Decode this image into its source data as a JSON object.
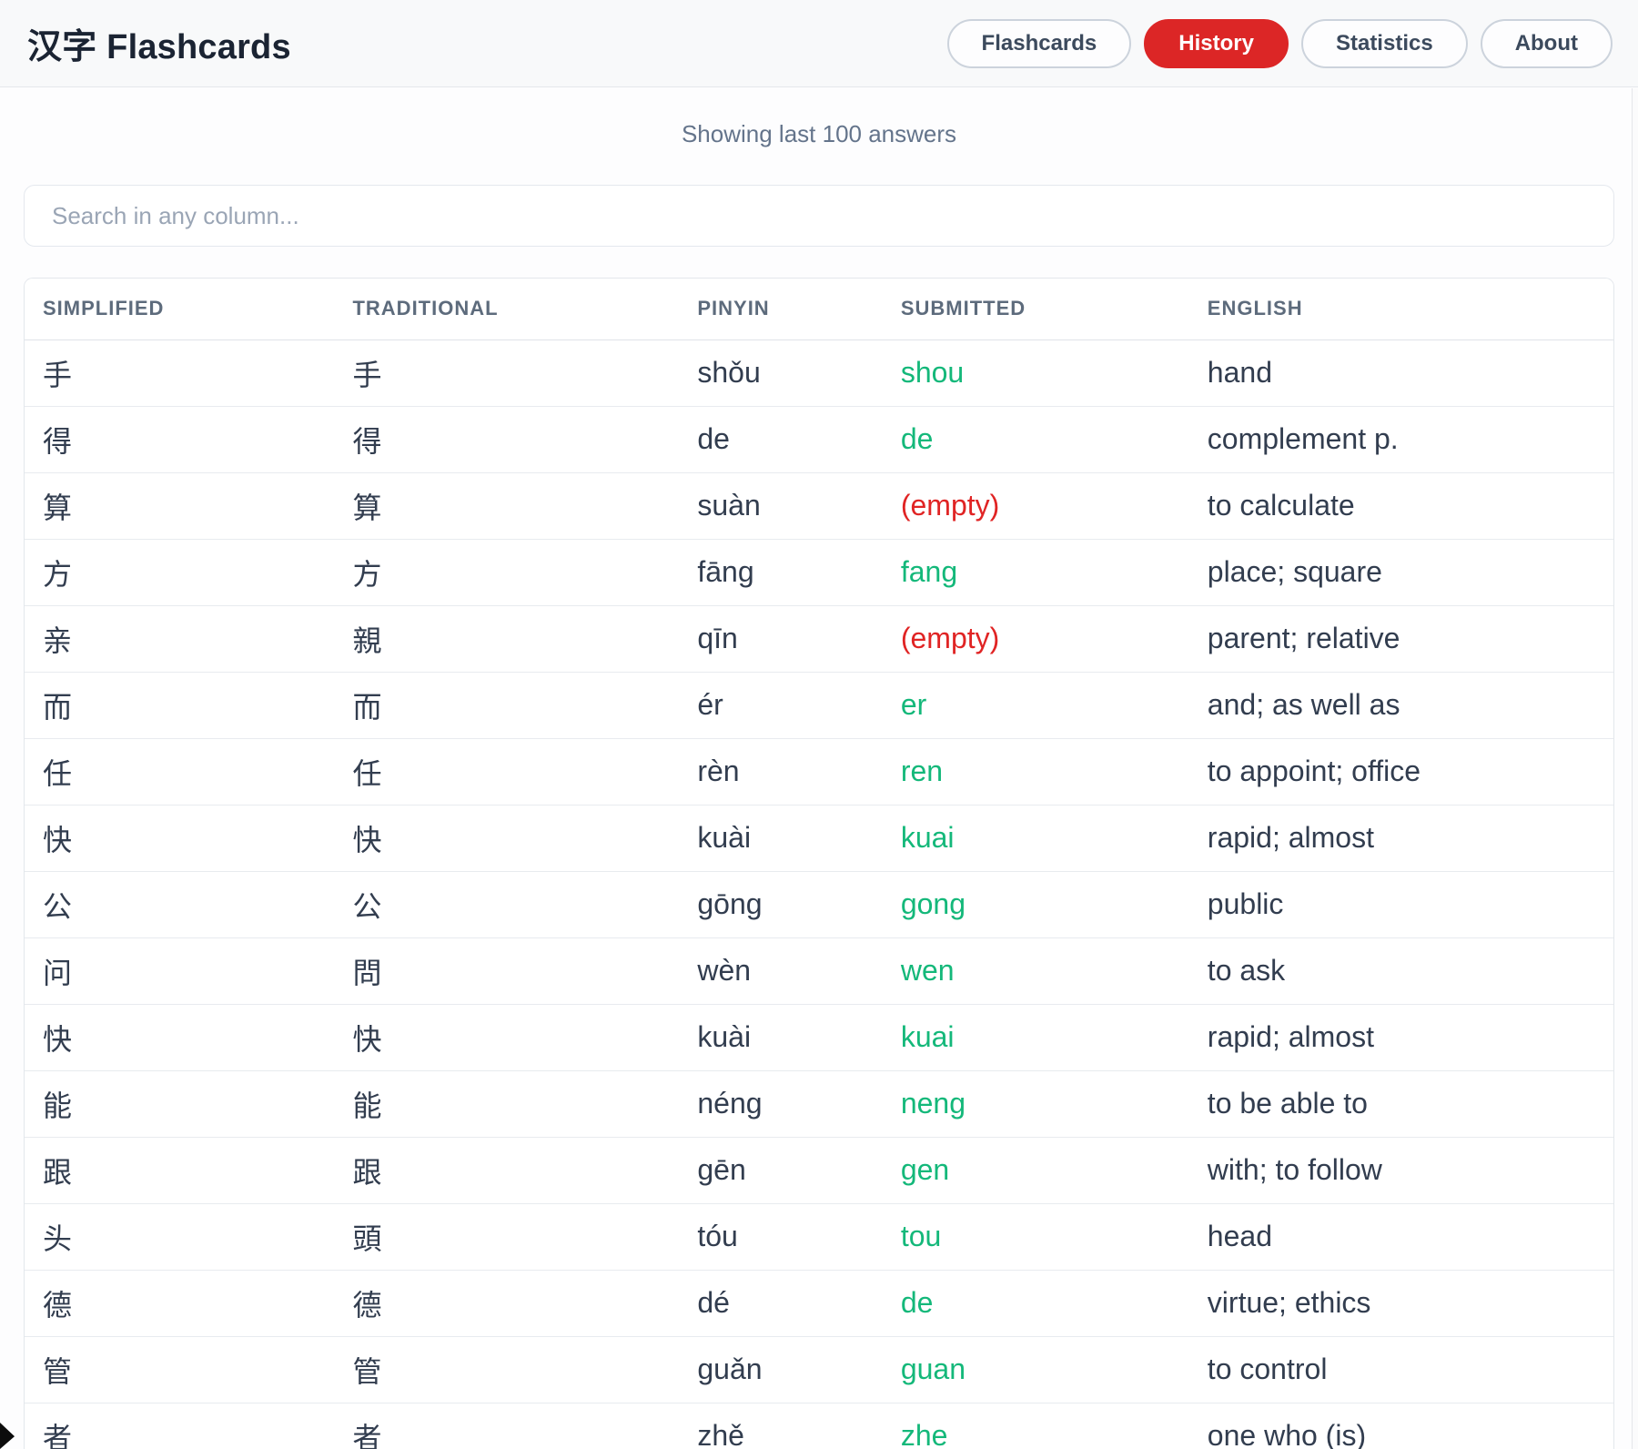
{
  "header": {
    "title": "汉字 Flashcards",
    "nav": [
      {
        "label": "Flashcards",
        "active": false
      },
      {
        "label": "History",
        "active": true
      },
      {
        "label": "Statistics",
        "active": false
      },
      {
        "label": "About",
        "active": false
      }
    ]
  },
  "subtitle": "Showing last 100 answers",
  "search": {
    "placeholder": "Search in any column...",
    "value": ""
  },
  "table": {
    "columns": [
      "SIMPLIFIED",
      "TRADITIONAL",
      "PINYIN",
      "SUBMITTED",
      "ENGLISH"
    ],
    "rows": [
      {
        "simplified": "手",
        "traditional": "手",
        "pinyin": "shǒu",
        "submitted": "shou",
        "status": "correct",
        "english": "hand"
      },
      {
        "simplified": "得",
        "traditional": "得",
        "pinyin": "de",
        "submitted": "de",
        "status": "correct",
        "english": "complement p."
      },
      {
        "simplified": "算",
        "traditional": "算",
        "pinyin": "suàn",
        "submitted": "(empty)",
        "status": "empty",
        "english": "to calculate"
      },
      {
        "simplified": "方",
        "traditional": "方",
        "pinyin": "fāng",
        "submitted": "fang",
        "status": "correct",
        "english": "place; square"
      },
      {
        "simplified": "亲",
        "traditional": "親",
        "pinyin": "qīn",
        "submitted": "(empty)",
        "status": "empty",
        "english": "parent; relative"
      },
      {
        "simplified": "而",
        "traditional": "而",
        "pinyin": "ér",
        "submitted": "er",
        "status": "correct",
        "english": "and; as well as"
      },
      {
        "simplified": "任",
        "traditional": "任",
        "pinyin": "rèn",
        "submitted": "ren",
        "status": "correct",
        "english": "to appoint; office"
      },
      {
        "simplified": "快",
        "traditional": "快",
        "pinyin": "kuài",
        "submitted": "kuai",
        "status": "correct",
        "english": "rapid; almost"
      },
      {
        "simplified": "公",
        "traditional": "公",
        "pinyin": "gōng",
        "submitted": "gong",
        "status": "correct",
        "english": "public"
      },
      {
        "simplified": "问",
        "traditional": "問",
        "pinyin": "wèn",
        "submitted": "wen",
        "status": "correct",
        "english": "to ask"
      },
      {
        "simplified": "快",
        "traditional": "快",
        "pinyin": "kuài",
        "submitted": "kuai",
        "status": "correct",
        "english": "rapid; almost"
      },
      {
        "simplified": "能",
        "traditional": "能",
        "pinyin": "néng",
        "submitted": "neng",
        "status": "correct",
        "english": "to be able to"
      },
      {
        "simplified": "跟",
        "traditional": "跟",
        "pinyin": "gēn",
        "submitted": "gen",
        "status": "correct",
        "english": "with; to follow"
      },
      {
        "simplified": "头",
        "traditional": "頭",
        "pinyin": "tóu",
        "submitted": "tou",
        "status": "correct",
        "english": "head"
      },
      {
        "simplified": "德",
        "traditional": "德",
        "pinyin": "dé",
        "submitted": "de",
        "status": "correct",
        "english": "virtue; ethics"
      },
      {
        "simplified": "管",
        "traditional": "管",
        "pinyin": "guǎn",
        "submitted": "guan",
        "status": "correct",
        "english": "to control"
      },
      {
        "simplified": "者",
        "traditional": "者",
        "pinyin": "zhě",
        "submitted": "zhe",
        "status": "correct",
        "english": "one who (is)"
      }
    ]
  },
  "colors": {
    "active_tab_red": "#dc2626",
    "correct_green": "#14b87a",
    "empty_red": "#e02424"
  }
}
